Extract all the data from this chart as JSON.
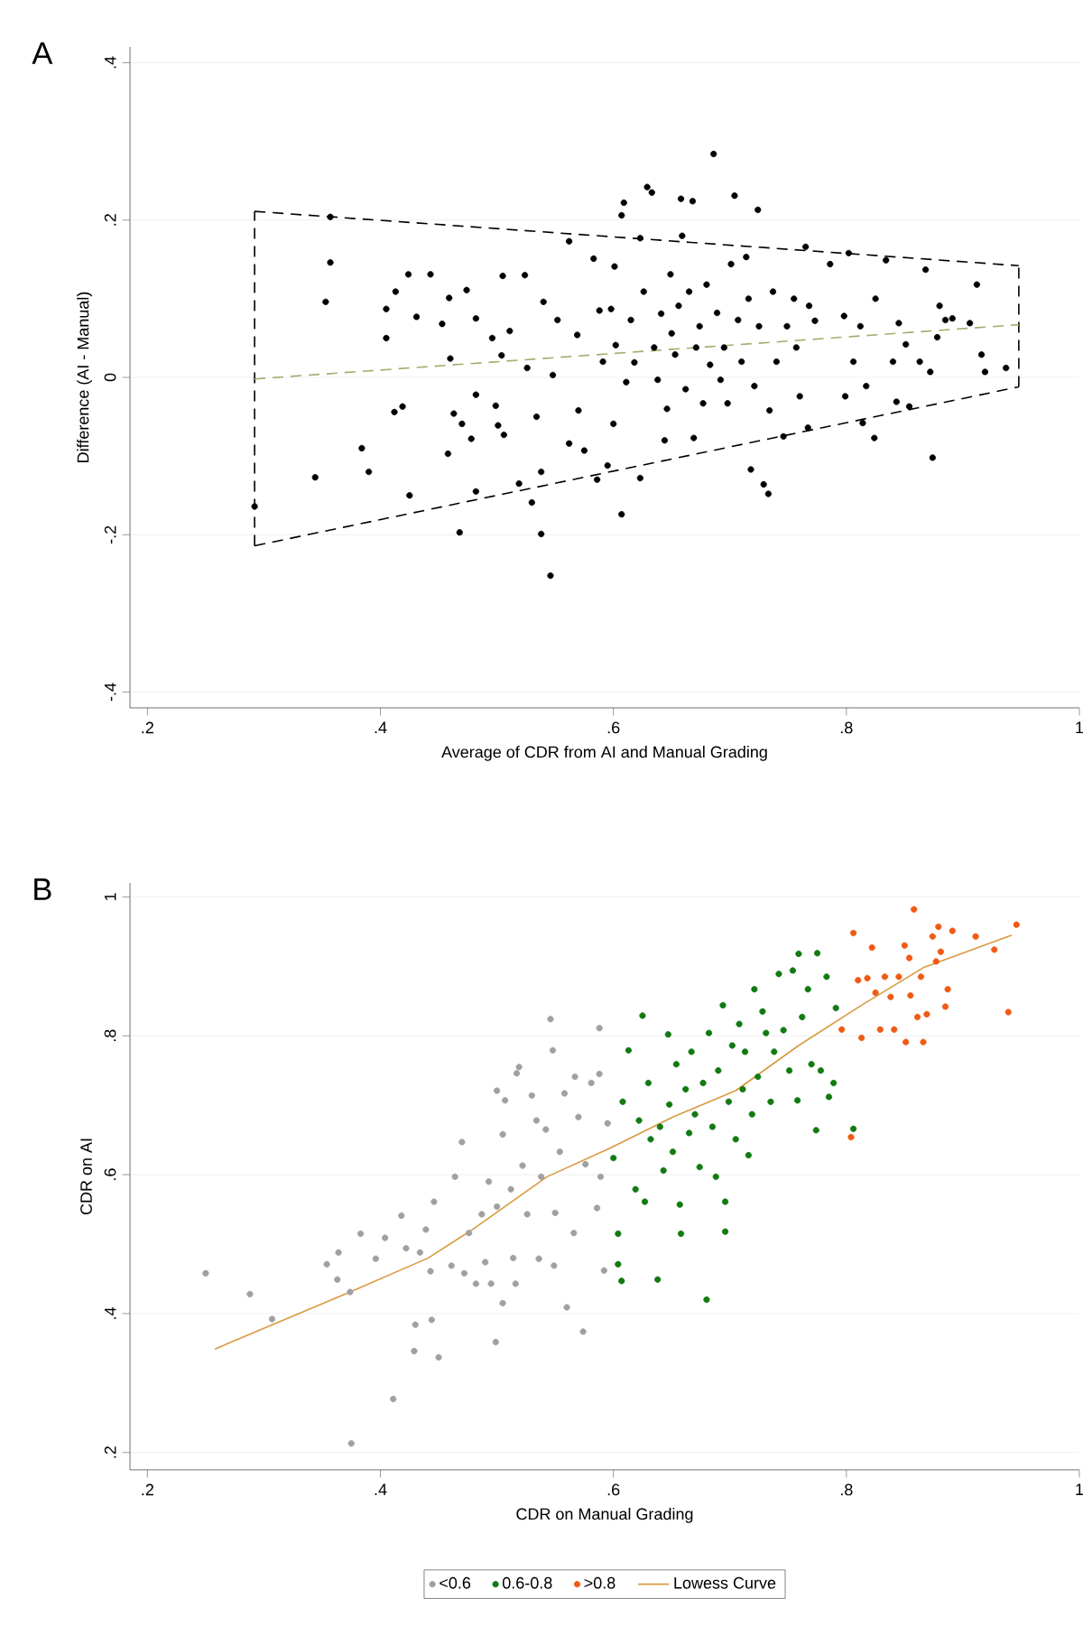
{
  "chart_data": [
    {
      "type": "scatter",
      "title": "A",
      "xlabel": "Average of CDR from AI and Manual Grading",
      "ylabel": "Difference (AI - Manual)",
      "xlim": [
        0.185,
        1.0
      ],
      "ylim": [
        -0.42,
        0.42
      ],
      "xticks": [
        {
          "value": 0.2,
          "label": ".2"
        },
        {
          "value": 0.4,
          "label": ".4"
        },
        {
          "value": 0.6,
          "label": ".6"
        },
        {
          "value": 0.8,
          "label": ".8"
        },
        1
      ],
      "yticks": [
        {
          "value": -0.4,
          "label": "-.4"
        },
        {
          "value": -0.2,
          "label": "-.2"
        },
        0,
        {
          "value": 0.2,
          "label": ".2"
        },
        {
          "value": 0.4,
          "label": ".4"
        }
      ],
      "grid": "y",
      "legend": false,
      "series": [
        {
          "marker": "circle",
          "color": "#000000",
          "x": [
            0.292,
            0.344,
            0.353,
            0.357,
            0.357,
            0.384,
            0.39,
            0.405,
            0.405,
            0.412,
            0.413,
            0.419,
            0.424,
            0.425,
            0.431,
            0.443,
            0.453,
            0.458,
            0.459,
            0.46,
            0.463,
            0.468,
            0.47,
            0.474,
            0.478,
            0.482,
            0.482,
            0.482,
            0.496,
            0.499,
            0.501,
            0.504,
            0.505,
            0.506,
            0.511,
            0.519,
            0.524,
            0.526,
            0.53,
            0.534,
            0.538,
            0.538,
            0.54,
            0.546,
            0.548,
            0.552,
            0.562,
            0.562,
            0.569,
            0.57,
            0.575,
            0.583,
            0.586,
            0.588,
            0.591,
            0.595,
            0.598,
            0.6,
            0.601,
            0.602,
            0.607,
            0.607,
            0.609,
            0.611,
            0.615,
            0.618,
            0.623,
            0.623,
            0.626,
            0.629,
            0.633,
            0.635,
            0.638,
            0.641,
            0.644,
            0.646,
            0.649,
            0.65,
            0.653,
            0.656,
            0.658,
            0.659,
            0.662,
            0.665,
            0.668,
            0.669,
            0.671,
            0.674,
            0.677,
            0.68,
            0.683,
            0.686,
            0.689,
            0.692,
            0.695,
            0.698,
            0.701,
            0.704,
            0.707,
            0.71,
            0.714,
            0.716,
            0.718,
            0.721,
            0.724,
            0.725,
            0.729,
            0.733,
            0.734,
            0.737,
            0.74,
            0.746,
            0.749,
            0.755,
            0.757,
            0.76,
            0.765,
            0.767,
            0.768,
            0.773,
            0.786,
            0.798,
            0.799,
            0.802,
            0.806,
            0.812,
            0.814,
            0.817,
            0.824,
            0.825,
            0.834,
            0.84,
            0.843,
            0.845,
            0.851,
            0.854,
            0.863,
            0.868,
            0.872,
            0.874,
            0.878,
            0.88,
            0.885,
            0.891,
            0.906,
            0.912,
            0.916,
            0.919,
            0.937
          ],
          "values": [
            -0.164,
            -0.127,
            0.096,
            0.204,
            0.146,
            -0.09,
            -0.12,
            0.05,
            0.087,
            -0.044,
            0.109,
            -0.037,
            0.131,
            -0.15,
            0.077,
            0.131,
            0.068,
            -0.097,
            0.101,
            0.024,
            -0.046,
            -0.197,
            -0.059,
            0.111,
            -0.078,
            -0.022,
            0.075,
            -0.145,
            0.05,
            -0.036,
            -0.061,
            0.028,
            0.129,
            -0.073,
            0.059,
            -0.135,
            0.13,
            0.012,
            -0.159,
            -0.05,
            -0.199,
            -0.12,
            0.096,
            -0.252,
            0.003,
            0.073,
            0.173,
            -0.084,
            0.054,
            -0.042,
            -0.093,
            0.151,
            -0.13,
            0.085,
            0.02,
            -0.112,
            0.087,
            -0.059,
            0.141,
            0.041,
            0.206,
            -0.174,
            0.222,
            -0.006,
            0.073,
            0.019,
            -0.128,
            0.177,
            0.109,
            0.242,
            0.235,
            0.038,
            -0.003,
            0.081,
            -0.08,
            -0.04,
            0.131,
            0.056,
            0.029,
            0.091,
            0.227,
            0.18,
            -0.015,
            0.109,
            0.224,
            -0.077,
            0.038,
            0.065,
            -0.033,
            0.118,
            0.016,
            0.284,
            0.082,
            -0.003,
            0.038,
            -0.033,
            0.144,
            0.231,
            0.073,
            0.02,
            0.153,
            0.1,
            -0.117,
            -0.011,
            0.213,
            0.065,
            -0.136,
            -0.148,
            -0.042,
            0.109,
            0.02,
            -0.075,
            0.065,
            0.1,
            0.038,
            -0.024,
            0.166,
            -0.064,
            0.091,
            0.072,
            0.144,
            0.078,
            -0.024,
            0.158,
            0.02,
            0.065,
            -0.058,
            -0.011,
            -0.077,
            0.1,
            0.149,
            0.02,
            -0.031,
            0.069,
            0.042,
            -0.037,
            0.02,
            0.137,
            0.007,
            -0.102,
            0.051,
            0.091,
            0.073,
            0.075,
            0.069,
            0.118,
            0.029,
            0.007,
            0.012
          ]
        },
        {
          "type": "line",
          "color": "#000000",
          "line_style": "dashed",
          "x": [
            0.292,
            0.948
          ],
          "values": [
            0.211,
            0.142
          ]
        },
        {
          "type": "line",
          "color": "#000000",
          "line_style": "dashed",
          "x": [
            0.292,
            0.948
          ],
          "values": [
            -0.214,
            -0.012
          ]
        },
        {
          "type": "line",
          "color": "#000000",
          "line_style": "dashed",
          "x": [
            0.292,
            0.292
          ],
          "values": [
            -0.214,
            0.211
          ]
        },
        {
          "type": "line",
          "color": "#000000",
          "line_style": "dashed",
          "x": [
            0.948,
            0.948
          ],
          "values": [
            -0.012,
            0.142
          ]
        },
        {
          "type": "line",
          "color": "#a3ad6e",
          "line_style": "dashed",
          "x": [
            0.292,
            0.948
          ],
          "values": [
            -0.002,
            0.067
          ]
        }
      ]
    },
    {
      "type": "scatter",
      "title": "B",
      "xlabel": "CDR on Manual Grading",
      "ylabel": "CDR on AI",
      "xlim": [
        0.185,
        1.0
      ],
      "ylim": [
        0.175,
        1.02
      ],
      "xticks": [
        {
          "value": 0.2,
          "label": ".2"
        },
        {
          "value": 0.4,
          "label": ".4"
        },
        {
          "value": 0.6,
          "label": ".6"
        },
        {
          "value": 0.8,
          "label": ".8"
        },
        1
      ],
      "yticks": [
        {
          "value": 0.2,
          "label": ".2"
        },
        {
          "value": 0.4,
          "label": ".4"
        },
        {
          "value": 0.6,
          "label": ".6"
        },
        {
          "value": 0.8,
          "label": ".8"
        },
        1
      ],
      "grid": "y",
      "legend": "bottom",
      "series": [
        {
          "marker": "circle",
          "name": "<0.6",
          "color": "#a0a0a0",
          "x": [
            0.25,
            0.288,
            0.307,
            0.354,
            0.363,
            0.364,
            0.374,
            0.375,
            0.383,
            0.396,
            0.404,
            0.411,
            0.418,
            0.422,
            0.429,
            0.43,
            0.434,
            0.439,
            0.443,
            0.444,
            0.446,
            0.45,
            0.461,
            0.464,
            0.47,
            0.472,
            0.476,
            0.482,
            0.487,
            0.49,
            0.493,
            0.495,
            0.499,
            0.5,
            0.5,
            0.505,
            0.505,
            0.507,
            0.512,
            0.514,
            0.516,
            0.517,
            0.519,
            0.522,
            0.526,
            0.53,
            0.534,
            0.536,
            0.538,
            0.542,
            0.546,
            0.548,
            0.549,
            0.55,
            0.554,
            0.558,
            0.56,
            0.566,
            0.567,
            0.57,
            0.574,
            0.576,
            0.581,
            0.586,
            0.588,
            0.589,
            0.592,
            0.595,
            0.588
          ],
          "values": [
            0.458,
            0.428,
            0.392,
            0.471,
            0.449,
            0.488,
            0.431,
            0.213,
            0.515,
            0.479,
            0.509,
            0.277,
            0.541,
            0.494,
            0.346,
            0.384,
            0.488,
            0.521,
            0.461,
            0.391,
            0.561,
            0.337,
            0.469,
            0.597,
            0.647,
            0.458,
            0.516,
            0.443,
            0.543,
            0.474,
            0.59,
            0.443,
            0.359,
            0.554,
            0.721,
            0.415,
            0.658,
            0.707,
            0.579,
            0.48,
            0.443,
            0.746,
            0.755,
            0.613,
            0.543,
            0.714,
            0.678,
            0.479,
            0.597,
            0.665,
            0.824,
            0.779,
            0.469,
            0.545,
            0.633,
            0.717,
            0.409,
            0.516,
            0.741,
            0.683,
            0.374,
            0.615,
            0.732,
            0.552,
            0.811,
            0.597,
            0.462,
            0.674,
            0.745
          ]
        },
        {
          "marker": "circle",
          "name": "0.6-0.8",
          "color": "#117a11",
          "x": [
            0.604,
            0.604,
            0.607,
            0.6,
            0.608,
            0.613,
            0.619,
            0.622,
            0.625,
            0.627,
            0.63,
            0.632,
            0.638,
            0.64,
            0.643,
            0.647,
            0.648,
            0.651,
            0.654,
            0.657,
            0.658,
            0.662,
            0.665,
            0.667,
            0.67,
            0.674,
            0.677,
            0.68,
            0.682,
            0.685,
            0.688,
            0.69,
            0.694,
            0.696,
            0.696,
            0.699,
            0.702,
            0.705,
            0.708,
            0.711,
            0.713,
            0.716,
            0.719,
            0.721,
            0.724,
            0.728,
            0.731,
            0.735,
            0.738,
            0.742,
            0.746,
            0.751,
            0.754,
            0.759,
            0.758,
            0.762,
            0.767,
            0.77,
            0.774,
            0.775,
            0.778,
            0.783,
            0.785,
            0.789,
            0.791,
            0.806
          ],
          "values": [
            0.515,
            0.471,
            0.447,
            0.624,
            0.705,
            0.779,
            0.579,
            0.678,
            0.829,
            0.561,
            0.732,
            0.651,
            0.449,
            0.669,
            0.606,
            0.802,
            0.701,
            0.633,
            0.759,
            0.557,
            0.515,
            0.723,
            0.66,
            0.777,
            0.687,
            0.611,
            0.732,
            0.42,
            0.804,
            0.669,
            0.597,
            0.75,
            0.844,
            0.561,
            0.518,
            0.705,
            0.786,
            0.651,
            0.817,
            0.723,
            0.777,
            0.628,
            0.687,
            0.867,
            0.741,
            0.835,
            0.804,
            0.705,
            0.777,
            0.889,
            0.808,
            0.75,
            0.894,
            0.918,
            0.707,
            0.827,
            0.867,
            0.759,
            0.664,
            0.919,
            0.75,
            0.885,
            0.712,
            0.732,
            0.84,
            0.666
          ]
        },
        {
          "marker": "circle",
          "name": ">0.8",
          "color": "#f05a14",
          "x": [
            0.804,
            0.796,
            0.806,
            0.81,
            0.813,
            0.818,
            0.822,
            0.825,
            0.829,
            0.833,
            0.838,
            0.841,
            0.845,
            0.85,
            0.851,
            0.854,
            0.855,
            0.858,
            0.861,
            0.864,
            0.866,
            0.869,
            0.874,
            0.877,
            0.879,
            0.881,
            0.885,
            0.887,
            0.891,
            0.911,
            0.927,
            0.939,
            0.946
          ],
          "values": [
            0.654,
            0.809,
            0.948,
            0.88,
            0.797,
            0.883,
            0.927,
            0.862,
            0.809,
            0.885,
            0.856,
            0.809,
            0.885,
            0.93,
            0.791,
            0.912,
            0.858,
            0.982,
            0.827,
            0.885,
            0.791,
            0.831,
            0.943,
            0.907,
            0.957,
            0.921,
            0.842,
            0.867,
            0.951,
            0.943,
            0.924,
            0.834,
            0.96
          ]
        },
        {
          "type": "line",
          "name": "Lowess Curve",
          "color": "#d89a40",
          "line_style": "solid",
          "x": [
            0.258,
            0.374,
            0.441,
            0.479,
            0.543,
            0.597,
            0.651,
            0.705,
            0.759,
            0.813,
            0.866,
            0.942
          ],
          "values": [
            0.349,
            0.431,
            0.48,
            0.521,
            0.597,
            0.638,
            0.683,
            0.721,
            0.786,
            0.844,
            0.898,
            0.945
          ]
        }
      ]
    }
  ]
}
